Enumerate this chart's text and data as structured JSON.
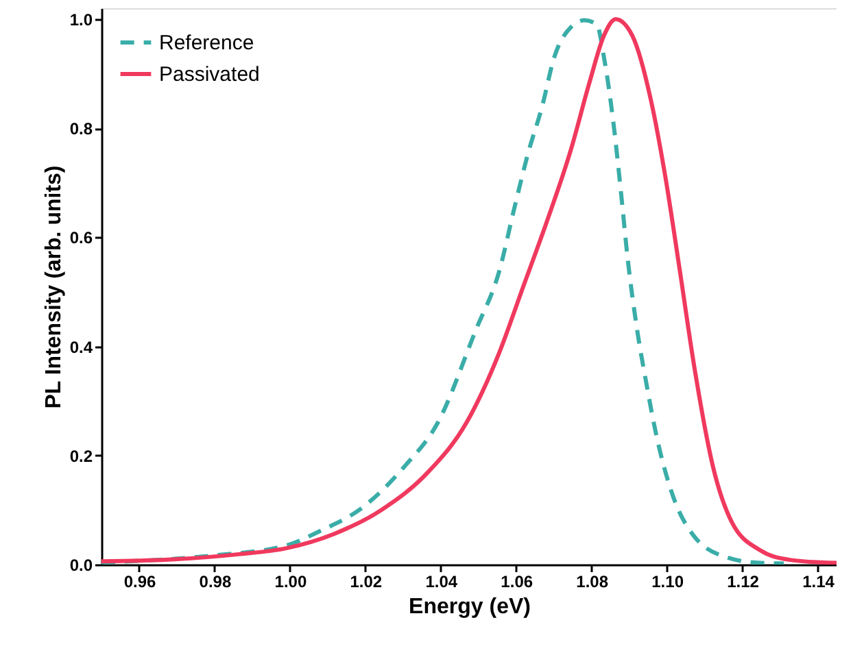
{
  "chart_data": {
    "type": "line",
    "xlabel": "Energy (eV)",
    "ylabel": "PL Intensity (arb. units)",
    "xlim": [
      0.95,
      1.145
    ],
    "xticks": [
      0.96,
      0.98,
      {
        "value": 1,
        "label": "1.00"
      },
      1.02,
      1.04,
      1.06,
      1.08,
      {
        "value": 1.1,
        "label": "1.10"
      },
      1.12,
      1.14
    ],
    "ylim": [
      0,
      1.02
    ],
    "yticks": [
      {
        "value": 0,
        "label": "0.0"
      },
      0.2,
      0.4,
      0.6,
      0.8,
      {
        "value": 1,
        "label": "1.0"
      }
    ],
    "grid": false,
    "legend": "top left",
    "series": [
      {
        "name": "Reference",
        "color": "#3aada8",
        "line_style": "dashed",
        "x": [
          0.95,
          0.9801,
          0.999,
          1.0078,
          1.0191,
          1.0304,
          1.0392,
          1.0493,
          1.0556,
          1.0594,
          1.0632,
          1.0669,
          1.0701,
          1.0745,
          1.0782,
          1.0814,
          1.0833,
          1.0858,
          1.0877,
          1.0896,
          1.0921,
          1.0946,
          1.0971,
          1.1009,
          1.1072,
          1.116,
          1.1248,
          1.131
        ],
        "values": [
          0.004,
          0.017,
          0.035,
          0.061,
          0.104,
          0.18,
          0.26,
          0.43,
          0.54,
          0.65,
          0.755,
          0.84,
          0.93,
          0.985,
          0.998,
          0.99,
          0.93,
          0.81,
          0.69,
          0.56,
          0.43,
          0.33,
          0.24,
          0.14,
          0.052,
          0.013,
          0.003,
          0.002
        ]
      },
      {
        "name": "Passivated",
        "color": "#f0395e",
        "line_style": "solid",
        "x": [
          0.95,
          0.9675,
          0.9864,
          0.999,
          1.0116,
          1.0242,
          1.0367,
          1.0468,
          1.0556,
          1.0619,
          1.0682,
          1.0745,
          1.0795,
          1.0833,
          1.0864,
          1.0908,
          1.0958,
          1.0996,
          1.1034,
          1.1072,
          1.1122,
          1.1172,
          1.1248,
          1.1323,
          1.1411,
          1.145
        ],
        "values": [
          0.006,
          0.009,
          0.019,
          0.03,
          0.056,
          0.1,
          0.17,
          0.26,
          0.39,
          0.51,
          0.63,
          0.76,
          0.885,
          0.97,
          1.0,
          0.97,
          0.85,
          0.71,
          0.54,
          0.365,
          0.18,
          0.078,
          0.026,
          0.009,
          0.004,
          0.003
        ]
      }
    ]
  }
}
